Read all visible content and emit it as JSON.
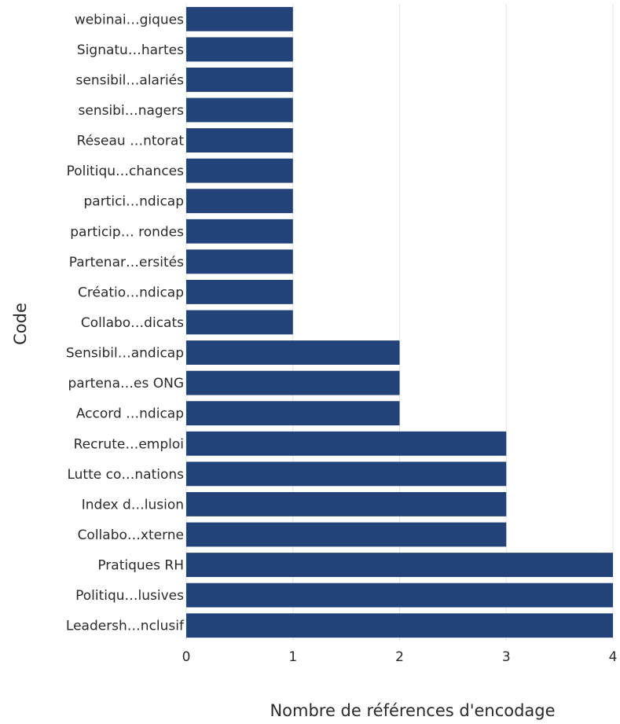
{
  "chart_data": {
    "type": "bar",
    "orientation": "horizontal",
    "categories": [
      "webinai…giques",
      "Signatu…hartes",
      "sensibil…alariés",
      "sensibi…nagers",
      "Réseau …ntorat",
      "Politiqu…chances",
      "partici…ndicap",
      "particip… rondes",
      "Partenar…ersités",
      "Créatio…ndicap",
      "Collabo…dicats",
      "Sensibil…andicap",
      "partena…es ONG",
      "Accord …ndicap",
      "Recrute…emploi",
      "Lutte co…nations",
      "Index d…lusion",
      "Collabo…xterne",
      "Pratiques RH",
      "Politiqu…lusives",
      "Leadersh…nclusif"
    ],
    "values": [
      1,
      1,
      1,
      1,
      1,
      1,
      1,
      1,
      1,
      1,
      1,
      2,
      2,
      2,
      3,
      3,
      3,
      3,
      4,
      4,
      4
    ],
    "xticks": [
      "0",
      "1",
      "2",
      "3",
      "4"
    ],
    "xlim": [
      0,
      4
    ],
    "xlabel": "Nombre de références d'encodage",
    "ylabel": "Code",
    "bar_color": "#22427a",
    "grid": true,
    "grid_color": "#e3e3e3"
  }
}
